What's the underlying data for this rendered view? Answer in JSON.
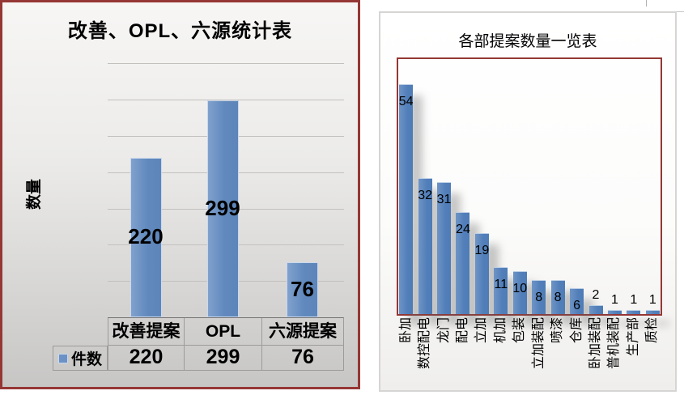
{
  "colors": {
    "bar_blue": "#5D85B9",
    "bar_border": "#C9D8EB",
    "accent_dark_red": "#953735",
    "right_panel_border": "#D6D5D4",
    "gridline_gray": "#C2C1C0"
  },
  "chart_data": [
    {
      "type": "bar",
      "title": "改善、OPL、六源统计表",
      "xlabel": "",
      "ylabel": "数量",
      "categories": [
        "改善提案",
        "OPL",
        "六源提案"
      ],
      "series": [
        {
          "name": "件数",
          "values": [
            220,
            299,
            76
          ]
        }
      ],
      "ylim": [
        0,
        350
      ],
      "gridline_step": 50,
      "grid": true,
      "legend_position": "data-table-left",
      "data_labels": "center",
      "annotations": [
        "220",
        "299",
        "76"
      ]
    },
    {
      "type": "bar",
      "title": "各部提案数量一览表",
      "xlabel": "",
      "ylabel": "",
      "categories": [
        "卧加",
        "数控配电",
        "龙门",
        "配电",
        "立加",
        "机加",
        "包装",
        "立加装配",
        "喷漆",
        "仓库",
        "卧加装配",
        "普机装配",
        "生产部",
        "质检"
      ],
      "values": [
        54,
        32,
        31,
        24,
        19,
        11,
        10,
        8,
        8,
        6,
        2,
        1,
        1,
        1
      ],
      "ylim": [
        0,
        60
      ],
      "grid": false,
      "legend_position": "none",
      "data_labels": "inside-end",
      "x_tick_rotation": -90
    }
  ]
}
